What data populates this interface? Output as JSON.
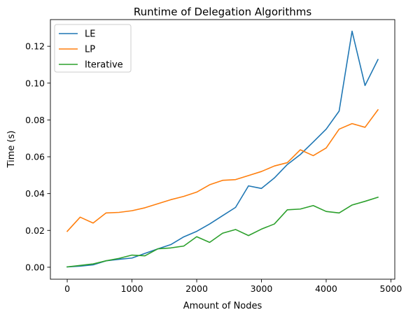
{
  "chart_data": {
    "type": "line",
    "title": "Runtime of Delegation Algorithms",
    "xlabel": "Amount of Nodes",
    "ylabel": "Time (s)",
    "xlim": [
      -260,
      5060
    ],
    "ylim": [
      -0.0065,
      0.1345
    ],
    "x_ticks": [
      0,
      1000,
      2000,
      3000,
      4000,
      5000
    ],
    "x_tick_labels": [
      "0",
      "1000",
      "2000",
      "3000",
      "4000",
      "5000"
    ],
    "y_ticks": [
      0.0,
      0.02,
      0.04,
      0.06,
      0.08,
      0.1,
      0.12
    ],
    "y_tick_labels": [
      "0.00",
      "0.02",
      "0.04",
      "0.06",
      "0.08",
      "0.10",
      "0.12"
    ],
    "grid": false,
    "legend_position": "upper-left",
    "x": [
      0,
      200,
      400,
      600,
      800,
      1000,
      1200,
      1400,
      1600,
      1800,
      2000,
      2200,
      2400,
      2600,
      2800,
      3000,
      3200,
      3400,
      3600,
      3800,
      4000,
      4200,
      4400,
      4600,
      4800
    ],
    "series": [
      {
        "name": "LE",
        "color": "#1f77b4",
        "values": [
          0.0002,
          0.0006,
          0.0013,
          0.0035,
          0.0043,
          0.005,
          0.0075,
          0.01,
          0.0123,
          0.0165,
          0.0195,
          0.0235,
          0.028,
          0.0325,
          0.0442,
          0.0428,
          0.0485,
          0.0558,
          0.0612,
          0.068,
          0.075,
          0.0848,
          0.1282,
          0.0987,
          0.1128
        ]
      },
      {
        "name": "LP",
        "color": "#ff7f0e",
        "values": [
          0.0195,
          0.0272,
          0.024,
          0.0295,
          0.0298,
          0.0307,
          0.0323,
          0.0345,
          0.0367,
          0.0385,
          0.0408,
          0.0448,
          0.0472,
          0.0476,
          0.0498,
          0.052,
          0.055,
          0.0568,
          0.0638,
          0.0606,
          0.0648,
          0.075,
          0.078,
          0.076,
          0.0855
        ]
      },
      {
        "name": "Iterative",
        "color": "#2ca02c",
        "values": [
          0.0002,
          0.001,
          0.0018,
          0.0035,
          0.0048,
          0.0066,
          0.0062,
          0.01,
          0.0105,
          0.0115,
          0.0166,
          0.0135,
          0.0185,
          0.0205,
          0.0172,
          0.0207,
          0.0235,
          0.0312,
          0.0316,
          0.0335,
          0.0303,
          0.0295,
          0.0338,
          0.0358,
          0.038
        ]
      }
    ]
  }
}
